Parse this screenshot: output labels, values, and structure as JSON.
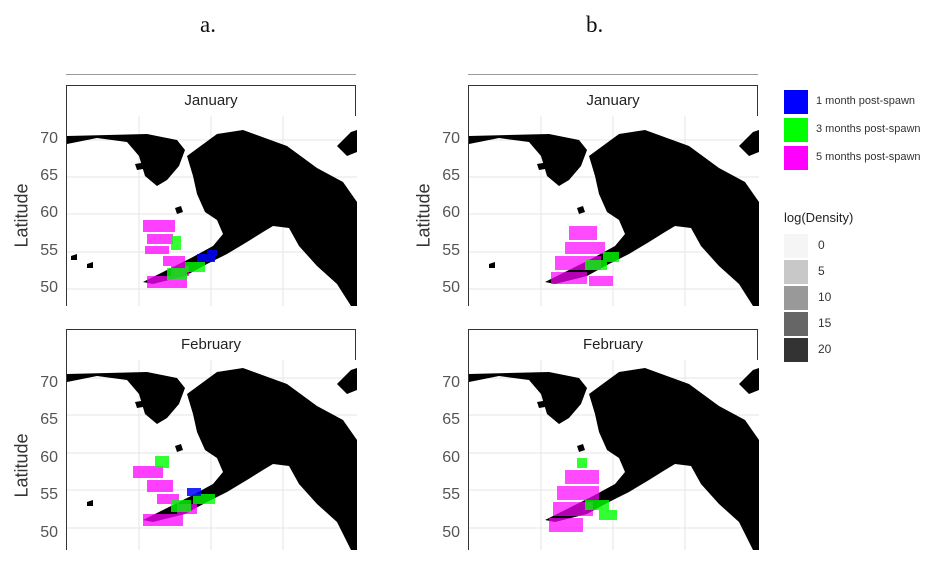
{
  "panels": {
    "a": {
      "heading": "a."
    },
    "b": {
      "heading": "b."
    }
  },
  "facets": {
    "top": {
      "strip": "January"
    },
    "bottom": {
      "strip": "February"
    }
  },
  "axis": {
    "ylabel": "Latitude",
    "yticks": [
      "70",
      "65",
      "60",
      "55",
      "50"
    ]
  },
  "legend": {
    "items": [
      {
        "label": "1 month post-spawn",
        "color": "#0000ff"
      },
      {
        "label": "3 months post-spawn",
        "color": "#00ff00"
      },
      {
        "label": "5 months post-spawn",
        "color": "#ff00ff"
      }
    ],
    "density_title": "log(Density)",
    "density_items": [
      {
        "label": "0",
        "color": "#f5f5f5"
      },
      {
        "label": "5",
        "color": "#c8c8c8"
      },
      {
        "label": "10",
        "color": "#999999"
      },
      {
        "label": "15",
        "color": "#666666"
      },
      {
        "label": "20",
        "color": "#333333"
      }
    ]
  },
  "colors": {
    "land": "#000000",
    "grid": "#e6e6e6"
  }
}
